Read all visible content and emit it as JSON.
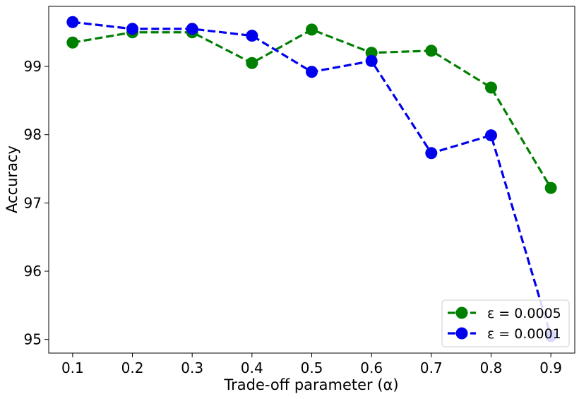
{
  "chart_data": {
    "type": "line",
    "title": "",
    "xlabel": "Trade-off parameter (α)",
    "ylabel": "Accuracy",
    "x": [
      0.1,
      0.2,
      0.3,
      0.4,
      0.5,
      0.6,
      0.7,
      0.8,
      0.9
    ],
    "xticks": [
      "0.1",
      "0.2",
      "0.3",
      "0.4",
      "0.5",
      "0.6",
      "0.7",
      "0.8",
      "0.9"
    ],
    "yticks": [
      "95",
      "96",
      "97",
      "98",
      "99"
    ],
    "xlim": [
      0.06,
      0.94
    ],
    "ylim": [
      94.8,
      99.88
    ],
    "grid": false,
    "legend_position": "lower-right",
    "series": [
      {
        "name": "ε = 0.0005",
        "color": "#008000",
        "line_style": "dashed",
        "marker": "circle",
        "values": [
          99.35,
          99.5,
          99.5,
          99.05,
          99.54,
          99.2,
          99.23,
          98.69,
          97.22
        ]
      },
      {
        "name": "ε = 0.0001",
        "color": "#0000ee",
        "line_style": "dashed",
        "marker": "circle",
        "values": [
          99.65,
          99.55,
          99.55,
          99.45,
          98.92,
          99.08,
          97.73,
          97.99,
          95.05
        ]
      }
    ]
  }
}
